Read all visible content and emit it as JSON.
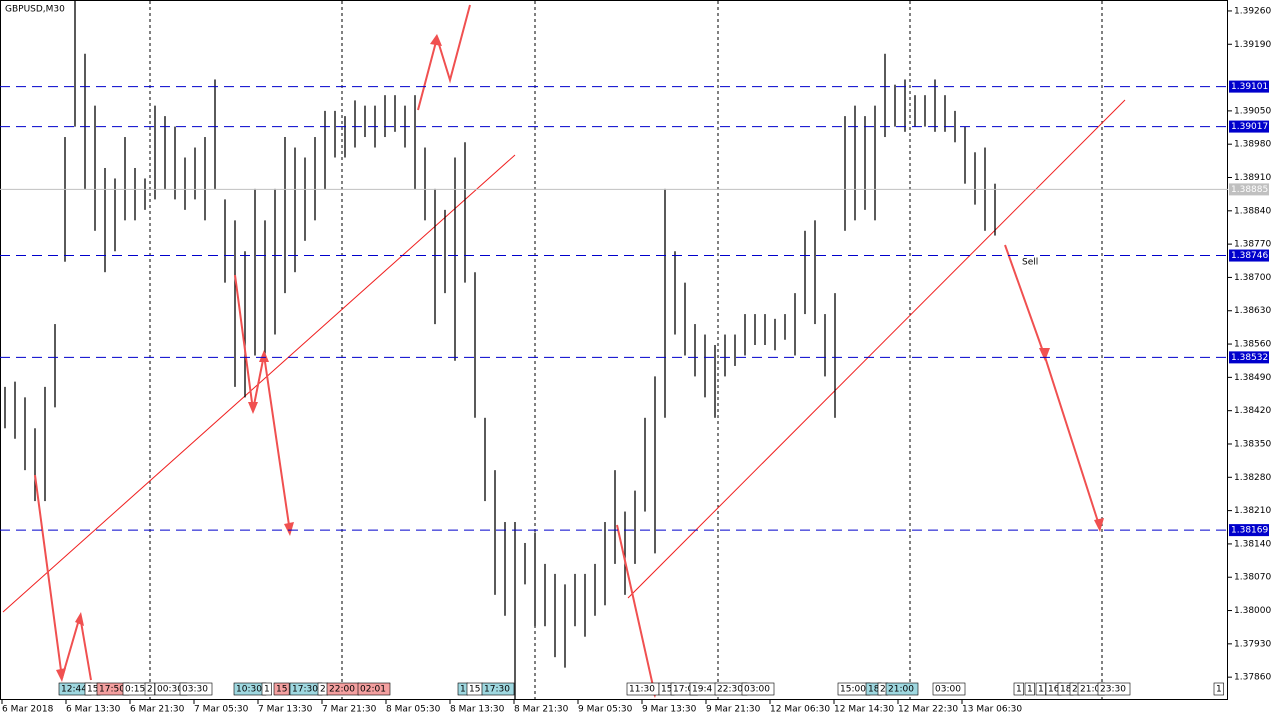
{
  "chart_data": {
    "type": "ohlc",
    "title": "GBPUSD,M30",
    "ylim": [
      1.37812,
      1.39283
    ],
    "yticks": [
      {
        "value": 1.3926,
        "label": "1.39260"
      },
      {
        "value": 1.3919,
        "label": "1.39190"
      },
      {
        "value": 1.3905,
        "label": "1.39050"
      },
      {
        "value": 1.3898,
        "label": "1.38980"
      },
      {
        "value": 1.3891,
        "label": "1.38910"
      },
      {
        "value": 1.3884,
        "label": "1.38840"
      },
      {
        "value": 1.3877,
        "label": "1.38770"
      },
      {
        "value": 1.387,
        "label": "1.38700"
      },
      {
        "value": 1.3863,
        "label": "1.38630"
      },
      {
        "value": 1.3856,
        "label": "1.38560"
      },
      {
        "value": 1.3849,
        "label": "1.38490"
      },
      {
        "value": 1.3842,
        "label": "1.38420"
      },
      {
        "value": 1.3835,
        "label": "1.38350"
      },
      {
        "value": 1.3828,
        "label": "1.38280"
      },
      {
        "value": 1.3821,
        "label": "1.38210"
      },
      {
        "value": 1.3814,
        "label": "1.38140"
      },
      {
        "value": 1.3807,
        "label": "1.38070"
      },
      {
        "value": 1.38,
        "label": "1.38000"
      },
      {
        "value": 1.3793,
        "label": "1.37930"
      },
      {
        "value": 1.3786,
        "label": "1.37860"
      }
    ],
    "levels": [
      1.39101,
      1.39017,
      1.38746,
      1.38532,
      1.38169
    ],
    "level_color": "#0000cc",
    "current_price": 1.38885,
    "bar_color": "#000000",
    "annotation": "Sell",
    "annotation_color": "#f05050",
    "xlabels": [
      "6 Mar 2018",
      "6 Mar 13:30",
      "6 Mar 21:30",
      "7 Mar 05:30",
      "7 Mar 13:30",
      "7 Mar 21:30",
      "8 Mar 05:30",
      "8 Mar 13:30",
      "8 Mar 21:30",
      "9 Mar 05:30",
      "9 Mar 13:30",
      "9 Mar 21:30",
      "12 Mar 06:30",
      "12 Mar 14:30",
      "12 Mar 22:30",
      "13 Mar 06:30"
    ],
    "tags": [
      {
        "text": "12:44",
        "color": "#9fd8e0"
      },
      {
        "text": "15",
        "color": "#ffffff"
      },
      {
        "text": "17:50",
        "color": "#f4a0a0"
      },
      {
        "text": "0:15",
        "color": "#ffffff"
      },
      {
        "text": "2",
        "color": "#ffffff"
      },
      {
        "text": "00:30",
        "color": "#ffffff"
      },
      {
        "text": "03:30",
        "color": "#ffffff"
      },
      {
        "text": "10:30",
        "color": "#9fd8e0"
      },
      {
        "text": "1",
        "color": "#ffffff"
      },
      {
        "text": "15",
        "color": "#f4a0a0"
      },
      {
        "text": "17:30",
        "color": "#9fd8e0"
      },
      {
        "text": "2",
        "color": "#ffffff"
      },
      {
        "text": "22:00",
        "color": "#f4a0a0"
      },
      {
        "text": "02:01",
        "color": "#f4a0a0"
      },
      {
        "text": "1",
        "color": "#9fd8e0"
      },
      {
        "text": "15",
        "color": "#ffffff"
      },
      {
        "text": "17:30",
        "color": "#9fd8e0"
      },
      {
        "text": "11:30",
        "color": "#ffffff"
      },
      {
        "text": "15",
        "color": "#ffffff"
      },
      {
        "text": "17:0",
        "color": "#ffffff"
      },
      {
        "text": "19:4",
        "color": "#ffffff"
      },
      {
        "text": "22:30",
        "color": "#ffffff"
      },
      {
        "text": "03:00",
        "color": "#ffffff"
      },
      {
        "text": "15:00",
        "color": "#ffffff"
      },
      {
        "text": "18",
        "color": "#9fd8e0"
      },
      {
        "text": "2",
        "color": "#ffffff"
      },
      {
        "text": "21:00",
        "color": "#9fd8e0"
      },
      {
        "text": "03:00",
        "color": "#ffffff"
      },
      {
        "text": "1",
        "color": "#ffffff"
      },
      {
        "text": "1",
        "color": "#ffffff"
      },
      {
        "text": "1",
        "color": "#ffffff"
      },
      {
        "text": "16",
        "color": "#ffffff"
      },
      {
        "text": "18",
        "color": "#ffffff"
      },
      {
        "text": "2",
        "color": "#ffffff"
      },
      {
        "text": "21:0",
        "color": "#ffffff"
      },
      {
        "text": "23:30",
        "color": "#ffffff"
      },
      {
        "text": "1",
        "color": "#ffffff"
      }
    ],
    "high": [
      1.3847,
      1.38481,
      1.38448,
      1.38383,
      1.3847,
      1.38602,
      1.38995,
      1.39291,
      1.3917,
      1.39061,
      1.3893,
      1.38908,
      1.38995,
      1.3893,
      1.38908,
      1.39061,
      1.39039,
      1.39017,
      1.38952,
      1.38973,
      1.38995,
      1.39116,
      1.38864,
      1.3882,
      1.38755,
      1.38886,
      1.3882,
      1.38886,
      1.38995,
      1.38973,
      1.38952,
      1.38995,
      1.3905,
      1.3905,
      1.39039,
      1.39072,
      1.39061,
      1.39061,
      1.39083,
      1.39083,
      1.39061,
      1.39083,
      1.38973,
      1.38886,
      1.38842,
      1.38952,
      1.38984,
      1.38711,
      1.38405,
      1.38295,
      1.38186,
      1.38186,
      1.38142,
      1.38164,
      1.38098,
      1.38077,
      1.38055,
      1.38077,
      1.38077,
      1.38098,
      1.38186,
      1.38295,
      1.38208,
      1.38252,
      1.38405,
      1.38492,
      1.38886,
      1.38755,
      1.38689,
      1.38602,
      1.3858,
      1.38558,
      1.3858,
      1.3858,
      1.38623,
      1.38623,
      1.38623,
      1.38613,
      1.38623,
      1.38667,
      1.38798,
      1.3882,
      1.38623,
      1.38667,
      1.39039,
      1.39061,
      1.39039,
      1.39061,
      1.3917,
      1.39105,
      1.39116,
      1.39083,
      1.39083,
      1.39116,
      1.39083,
      1.3905,
      1.39017,
      1.38963,
      1.38973,
      1.38897
    ],
    "low": [
      1.38383,
      1.38361,
      1.38295,
      1.3823,
      1.3823,
      1.38427,
      1.38733,
      1.39017,
      1.38886,
      1.38798,
      1.38711,
      1.38755,
      1.3882,
      1.3882,
      1.38842,
      1.38864,
      1.38886,
      1.38864,
      1.38842,
      1.38864,
      1.3882,
      1.38886,
      1.38689,
      1.3847,
      1.38448,
      1.38536,
      1.38536,
      1.3858,
      1.38667,
      1.38711,
      1.38777,
      1.3882,
      1.38886,
      1.38952,
      1.38952,
      1.38973,
      1.38995,
      1.38973,
      1.38995,
      1.39006,
      1.38973,
      1.38886,
      1.3882,
      1.38602,
      1.38667,
      1.38525,
      1.38689,
      1.38405,
      1.3823,
      1.38033,
      1.37989,
      1.37814,
      1.38055,
      1.37967,
      1.37967,
      1.37902,
      1.3788,
      1.37967,
      1.37945,
      1.37989,
      1.38011,
      1.38098,
      1.38033,
      1.38098,
      1.38208,
      1.3812,
      1.38405,
      1.3858,
      1.38536,
      1.38492,
      1.38448,
      1.38405,
      1.38492,
      1.38514,
      1.38536,
      1.38558,
      1.38558,
      1.38547,
      1.38569,
      1.38536,
      1.38623,
      1.38602,
      1.38492,
      1.38405,
      1.38798,
      1.3882,
      1.38842,
      1.3882,
      1.38995,
      1.39017,
      1.39006,
      1.39017,
      1.39017,
      1.39006,
      1.39006,
      1.38984,
      1.38897,
      1.38853,
      1.38798,
      1.38788
    ]
  }
}
